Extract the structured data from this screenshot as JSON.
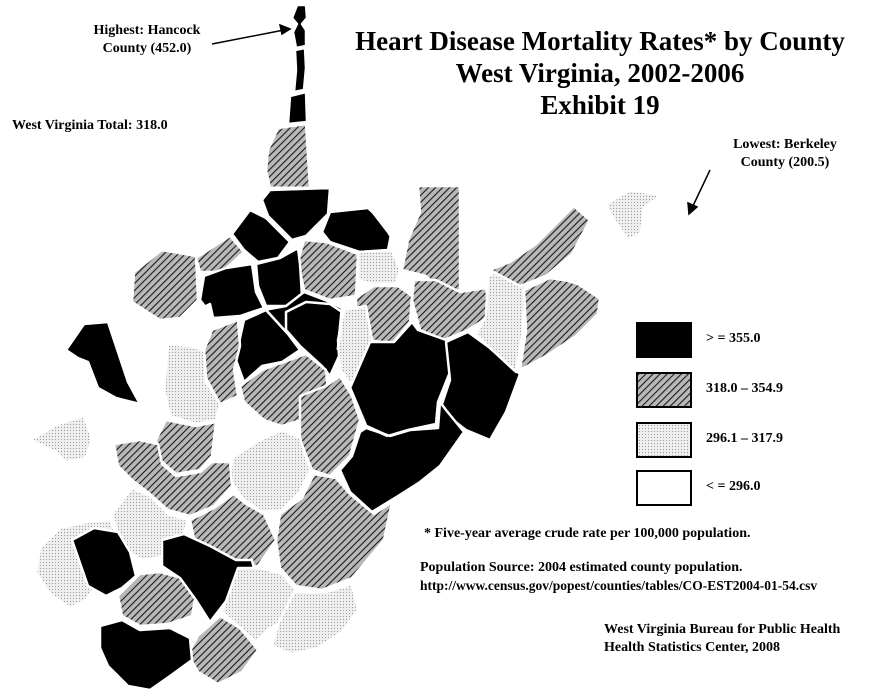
{
  "title": {
    "line1": "Heart Disease Mortality Rates* by County",
    "line2": "West Virginia, 2002-2006",
    "line3": "Exhibit 19"
  },
  "state_total": "West Virginia Total:  318.0",
  "callouts": {
    "highest": {
      "line1": "Highest:  Hancock",
      "line2": "County (452.0)",
      "county": "Hancock",
      "value": 452.0
    },
    "lowest": {
      "line1": "Lowest:  Berkeley",
      "line2": "County (200.5)",
      "county": "Berkeley",
      "value": 200.5
    }
  },
  "legend": [
    {
      "label": "> = 355.0",
      "pattern": "solid-black"
    },
    {
      "label": "318.0 – 354.9",
      "pattern": "diagonal-hatch"
    },
    {
      "label": "296.1 – 317.9",
      "pattern": "light-dots"
    },
    {
      "label": "< = 296.0",
      "pattern": "white"
    }
  ],
  "footnotes": {
    "rate_note": "* Five-year average crude rate per 100,000 population.",
    "source_line1": "Population Source:  2004 estimated county population.",
    "source_line2": "http://www.census.gov/popest/counties/tables/CO-EST2004-01-54.csv"
  },
  "credit": {
    "line1": "West Virginia Bureau for Public Health",
    "line2": "Health Statistics Center, 2008"
  }
}
